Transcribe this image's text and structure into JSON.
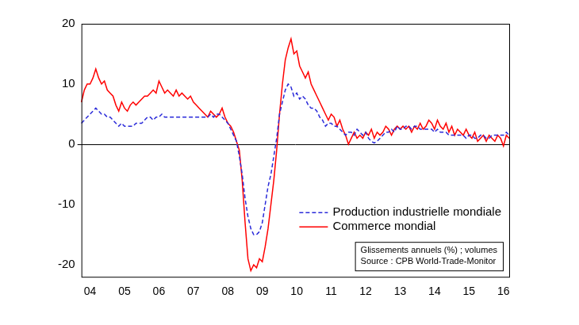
{
  "chart_data": {
    "type": "line",
    "categories": [
      null,
      null,
      null,
      "04",
      null,
      null,
      null,
      null,
      null,
      null,
      null,
      null,
      null,
      null,
      null,
      "05",
      null,
      null,
      null,
      null,
      null,
      null,
      null,
      null,
      null,
      null,
      null,
      "06",
      null,
      null,
      null,
      null,
      null,
      null,
      null,
      null,
      null,
      null,
      null,
      "07",
      null,
      null,
      null,
      null,
      null,
      null,
      null,
      null,
      null,
      null,
      null,
      "08",
      null,
      null,
      null,
      null,
      null,
      null,
      null,
      null,
      null,
      null,
      null,
      "09",
      null,
      null,
      null,
      null,
      null,
      null,
      null,
      null,
      null,
      null,
      null,
      "10",
      null,
      null,
      null,
      null,
      null,
      null,
      null,
      null,
      null,
      null,
      null,
      "11",
      null,
      null,
      null,
      null,
      null,
      null,
      null,
      null,
      null,
      null,
      null,
      "12",
      null,
      null,
      null,
      null,
      null,
      null,
      null,
      null,
      null,
      null,
      null,
      "13",
      null,
      null,
      null,
      null,
      null,
      null,
      null,
      null,
      null,
      null,
      null,
      "14",
      null,
      null,
      null,
      null,
      null,
      null,
      null,
      null,
      null,
      null,
      null,
      "15",
      null,
      null,
      null,
      null,
      null,
      null,
      null,
      null,
      null,
      null,
      null,
      "16",
      null,
      null
    ],
    "series": [
      {
        "name": "Production industrielle mondiale",
        "color": "#2b2bd9",
        "line_style": "dashed",
        "values": [
          3.5,
          4,
          4.5,
          5,
          5.5,
          6,
          5.5,
          5,
          5,
          4.5,
          4.5,
          4,
          3.5,
          3,
          3.5,
          3,
          3,
          3,
          3,
          3.5,
          3.5,
          3.5,
          4,
          4.5,
          4.5,
          4,
          4.5,
          4.5,
          5,
          4.5,
          4.5,
          4.5,
          4.5,
          4.5,
          4.5,
          4.5,
          4.5,
          4.5,
          4.5,
          4.5,
          4.5,
          4.5,
          4.5,
          4.5,
          4.5,
          5,
          4.5,
          5,
          5,
          4.5,
          4,
          3.5,
          2.5,
          1.5,
          0.5,
          -2,
          -5,
          -9,
          -12,
          -14,
          -15,
          -15,
          -14.5,
          -13,
          -10,
          -7,
          -5,
          -2,
          1,
          5,
          7,
          9,
          10,
          9.5,
          8,
          8.5,
          7.5,
          8,
          7.5,
          6.5,
          6,
          6,
          5.5,
          4.5,
          4,
          3,
          3.5,
          3.5,
          3,
          3,
          2.5,
          2,
          1.5,
          2,
          2,
          1.5,
          2.5,
          2,
          1.5,
          2,
          1,
          0.5,
          0.2,
          0.5,
          1,
          1.5,
          2,
          2,
          2.5,
          2,
          3,
          2.5,
          2.5,
          3,
          3,
          2.5,
          3,
          3,
          2.5,
          2.5,
          2.5,
          2.5,
          2.5,
          2,
          2.5,
          2,
          2,
          2,
          1.5,
          1.5,
          1.5,
          1.5,
          1.5,
          1.5,
          1,
          1.5,
          1.5,
          1,
          1,
          1.5,
          1.5,
          1,
          1,
          1.5,
          1.5,
          1.5,
          1.5,
          1.5,
          2,
          1.5
        ]
      },
      {
        "name": "Commerce mondial",
        "color": "#ff0000",
        "line_style": "solid",
        "values": [
          7,
          9,
          10,
          10,
          11,
          12.5,
          11,
          10,
          10.5,
          9,
          8.5,
          8,
          6.5,
          5.5,
          7,
          6,
          5.5,
          6.5,
          7,
          6.5,
          7,
          7.5,
          8,
          8,
          8.5,
          9,
          8.5,
          10.5,
          9.5,
          8.5,
          9,
          8.5,
          8,
          9,
          8,
          8.5,
          8,
          7.5,
          8,
          7,
          6.5,
          6,
          5.5,
          5,
          4.5,
          5.5,
          5,
          4.5,
          5,
          6,
          4.5,
          3.5,
          3,
          2,
          0.5,
          -1,
          -6,
          -13,
          -19,
          -21,
          -20,
          -20.5,
          -19,
          -19.5,
          -17,
          -14,
          -10,
          -6,
          -1,
          5,
          10,
          14,
          16,
          17.5,
          15,
          15.5,
          13,
          12,
          11,
          12,
          10,
          9,
          8,
          7,
          6,
          5,
          4,
          5,
          4.5,
          3,
          4,
          2.5,
          1.5,
          0,
          1,
          2,
          1,
          1.5,
          1,
          2,
          1.5,
          2.5,
          1,
          2,
          1.5,
          2,
          3,
          2.5,
          1.5,
          2.5,
          3,
          2.5,
          3,
          2.5,
          3,
          2,
          3,
          2.5,
          3.5,
          2.5,
          3,
          4,
          3.5,
          2.5,
          4,
          3,
          2.5,
          3.5,
          2,
          3,
          1.5,
          2.5,
          2,
          1.5,
          2.5,
          1.5,
          1,
          2,
          0.5,
          1,
          1.5,
          0.5,
          1.5,
          1,
          0.5,
          1.5,
          1,
          -0.3,
          1.5,
          1
        ]
      }
    ],
    "ylim": [
      -22,
      20
    ],
    "yticks": [
      -20,
      -10,
      0,
      10,
      20
    ],
    "grid": false,
    "legend": "lower right",
    "annotations": [
      "Glissements annuels (%) ; volumes",
      "Source : CPB World-Trade-Monitor"
    ]
  }
}
